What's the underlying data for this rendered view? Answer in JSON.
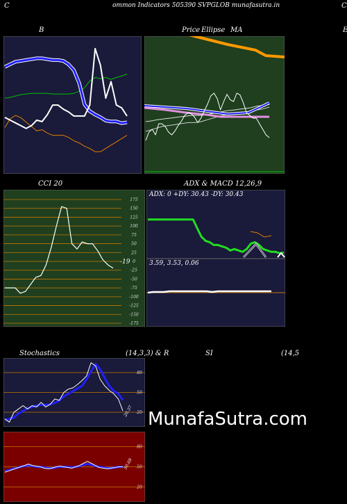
{
  "header": {
    "left_char": "C",
    "title": "ommon  Indicators 505390  SVPGLOB munafasutra.in",
    "right_char": "C"
  },
  "watermark": "MunafaSutra.com",
  "colors": {
    "navy_panel": "#1a1a3a",
    "green_panel": "#1f3f1f",
    "red_panel": "#7a0000",
    "grid_orange": "#c87800",
    "price": "#ffffff",
    "ma_blue": "#2020ff",
    "bb_green": "#00c000",
    "bb_orange": "#e08000",
    "adx_green": "#22dd22"
  },
  "chart_data": [
    {
      "name": "B",
      "type": "line",
      "title": "B",
      "series": [
        {
          "values": [
            0.46,
            0.44,
            0.42,
            0.4,
            0.38,
            0.4,
            0.44,
            0.43,
            0.48,
            0.55,
            0.55,
            0.52,
            0.5,
            0.47,
            0.47,
            0.47,
            0.55,
            0.96,
            0.84,
            0.6,
            0.72,
            0.55,
            0.53,
            0.47
          ]
        },
        {
          "values": [
            0.9,
            0.89,
            0.87,
            0.85,
            0.84,
            0.83,
            0.83,
            0.83,
            0.83,
            0.84,
            0.84,
            0.84,
            0.84,
            0.83,
            0.8,
            0.75,
            0.65,
            0.6,
            0.62,
            0.6,
            0.63,
            0.6,
            0.58,
            0.55
          ]
        },
        {
          "values": [
            0.36,
            0.33,
            0.3,
            0.29,
            0.28,
            0.27,
            0.26,
            0.26,
            0.27,
            0.28,
            0.28,
            0.29,
            0.33,
            0.4,
            0.55,
            0.8,
            0.88,
            0.92,
            0.95,
            0.99,
            1.0,
            1.0,
            1.02,
            1.01
          ]
        },
        {
          "values": [
            0.83,
            0.75,
            0.72,
            0.74,
            0.78,
            0.82,
            0.86,
            0.85,
            0.88,
            0.9,
            0.9,
            0.9,
            0.92,
            0.95,
            0.97,
            1.0,
            1.02,
            1.05,
            1.05,
            1.02,
            0.99,
            0.96,
            0.93,
            0.9
          ]
        }
      ]
    },
    {
      "name": "Price SMA",
      "type": "line",
      "title_parts": [
        "Price",
        "Ellipse",
        "MA"
      ],
      "series": [
        {
          "values": [
            0.1,
            0.25,
            0.3,
            0.2,
            0.4,
            0.4,
            0.35,
            0.25,
            0.2,
            0.27,
            0.37,
            0.45,
            0.55,
            0.6,
            0.58,
            0.52,
            0.42,
            0.5,
            0.63,
            0.75,
            0.9,
            0.95,
            0.85,
            0.65,
            0.8,
            0.93,
            0.83,
            0.8,
            0.95,
            0.92,
            0.78,
            0.6,
            0.55,
            0.5,
            0.5,
            0.4,
            0.3,
            0.2,
            0.15
          ]
        },
        {
          "values": [
            0.3,
            0.32,
            0.34,
            0.36,
            0.38,
            0.4,
            0.41,
            0.42,
            0.43,
            0.44,
            0.45,
            0.46,
            0.47,
            0.48,
            0.48,
            0.48,
            0.49,
            0.5,
            0.52,
            0.54,
            0.56,
            0.58,
            0.6,
            0.62,
            0.63,
            0.65,
            0.66,
            0.67,
            0.68,
            0.69,
            0.7,
            0.7,
            0.71,
            0.72,
            0.74,
            0.75,
            0.76,
            0.78,
            0.8
          ]
        },
        {
          "values": [
            0.45,
            0.46,
            0.47,
            0.49,
            0.5,
            0.51,
            0.52,
            0.53,
            0.54,
            0.55,
            0.56,
            0.57,
            0.58,
            0.59,
            0.6,
            0.6,
            0.6,
            0.6,
            0.61,
            0.62,
            0.64,
            0.65,
            0.66,
            0.68,
            0.7,
            0.71,
            0.72,
            0.73,
            0.74,
            0.75,
            0.76,
            0.77,
            0.78,
            0.8,
            0.82,
            0.83,
            0.84,
            0.85,
            0.86
          ]
        }
      ]
    },
    {
      "name": "CCI 20",
      "type": "line",
      "title": "CCI 20",
      "y_ticks": [
        175,
        150,
        125,
        100,
        75,
        50,
        25,
        0,
        -25,
        -50,
        -75,
        -100,
        -125,
        -150,
        -175
      ],
      "last_label": "-19",
      "series": [
        {
          "values": [
            -75,
            -75,
            -75,
            -90,
            -85,
            -65,
            -45,
            -40,
            -10,
            40,
            100,
            155,
            150,
            50,
            35,
            55,
            50,
            50,
            30,
            5,
            -10,
            -19
          ]
        }
      ],
      "ylim": [
        -185,
        185
      ]
    },
    {
      "name": "ADX",
      "type": "line",
      "title": "ADX  & MACD 12,26,9",
      "adx_label": "ADX: 0  +DY: 30.43 -DY: 30.43",
      "series": [
        {
          "name": "ADX",
          "values": [
            0.75,
            0.75,
            0.75,
            0.75,
            0.75,
            0.75,
            0.75,
            0.75,
            0.75,
            0.75,
            0.75,
            0.75,
            0.62,
            0.5,
            0.44,
            0.42,
            0.38,
            0.38,
            0.36,
            0.34,
            0.3,
            0.32,
            0.3,
            0.28,
            0.32,
            0.4,
            0.42,
            0.38,
            0.32,
            0.3,
            0.28,
            0.28,
            0.26,
            0.27
          ]
        }
      ]
    },
    {
      "name": "MACD",
      "type": "line",
      "macd_label": "3.59,  3.53,  0.06",
      "series": [
        {
          "values": [
            0.5,
            0.49,
            0.49,
            0.49,
            0.48,
            0.48,
            0.48,
            0.48,
            0.48,
            0.48,
            0.48,
            0.48,
            0.49,
            0.48,
            0.48,
            0.48,
            0.48,
            0.48,
            0.48,
            0.48,
            0.48,
            0.48,
            0.48,
            0.48
          ]
        }
      ]
    },
    {
      "name": "Stochastics",
      "type": "line",
      "title": "Stochastics",
      "params": "(14,3,3) & R",
      "y_ticks": [
        80,
        50,
        20
      ],
      "last_label": "20.37",
      "series": [
        {
          "values": [
            10,
            5,
            20,
            25,
            30,
            25,
            30,
            28,
            35,
            28,
            32,
            40,
            38,
            50,
            55,
            57,
            62,
            68,
            75,
            95,
            90,
            70,
            60,
            53,
            48,
            40,
            22
          ]
        },
        {
          "values": [
            8,
            10,
            12,
            18,
            22,
            26,
            28,
            30,
            31,
            31,
            32,
            34,
            38,
            44,
            48,
            52,
            56,
            60,
            70,
            82,
            93,
            85,
            72,
            60,
            52,
            48,
            38
          ]
        }
      ],
      "ylim": [
        0,
        100
      ]
    },
    {
      "name": "RSI",
      "type": "line",
      "title_parts": [
        "SI",
        "(14,5"
      ],
      "y_ticks": [
        80,
        50,
        20
      ],
      "last_label": "50.69",
      "series": [
        {
          "values": [
            42,
            44,
            46,
            48,
            50,
            52,
            54,
            52,
            51,
            50,
            48,
            47,
            48,
            50,
            51,
            50,
            49,
            48,
            50,
            52,
            55,
            58,
            55,
            52,
            49,
            48,
            47,
            48,
            49,
            50,
            50
          ]
        },
        {
          "values": [
            44,
            45,
            47,
            48,
            50,
            51,
            52,
            51,
            50,
            50,
            49,
            48,
            48,
            49,
            50,
            50,
            50,
            49,
            50,
            51,
            53,
            54,
            53,
            51,
            50,
            49,
            48,
            48,
            49,
            50,
            50
          ]
        }
      ],
      "ylim": [
        0,
        100
      ]
    }
  ]
}
